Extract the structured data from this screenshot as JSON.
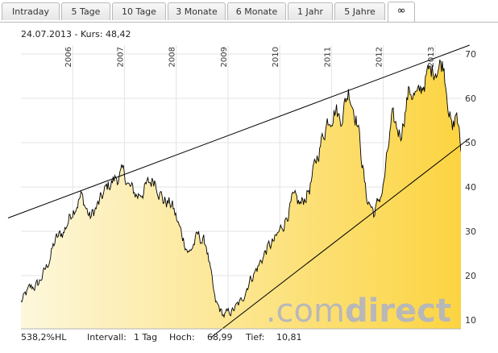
{
  "tabs": [
    {
      "label": "Intraday"
    },
    {
      "label": "5 Tage"
    },
    {
      "label": "10 Tage"
    },
    {
      "label": "3 Monate"
    },
    {
      "label": "6 Monate"
    },
    {
      "label": "1 Jahr"
    },
    {
      "label": "5 Jahre"
    },
    {
      "label": "∞",
      "active": true
    }
  ],
  "info": {
    "date": "24.07.2013",
    "kurs_label": " - Kurs:",
    "kurs_value": "48,42"
  },
  "footer": {
    "performance": "538,2%HL",
    "interval_label": "Intervall:",
    "interval_value": "1 Tag",
    "high_label": "Hoch:",
    "high_value": "68,99",
    "low_label": "Tief:",
    "low_value": "10,81"
  },
  "watermark": {
    "part1": ".com",
    "part2": "direct"
  },
  "colors": {
    "fill_light": "#fdf7dc",
    "fill_dark": "#fcd441",
    "line": "#000000",
    "grid": "#e3e3e3",
    "watermark": "#b8b8b8"
  },
  "chart_data": {
    "type": "area",
    "x_range": [
      "2005-01",
      "2013-07"
    ],
    "ylim": [
      8,
      72
    ],
    "yticks": [
      10,
      20,
      30,
      40,
      50,
      60,
      70
    ],
    "year_labels": [
      "2006",
      "2007",
      "2008",
      "2009",
      "2010",
      "2011",
      "2012",
      "2013"
    ],
    "grid": true,
    "series": [
      {
        "values_x": [
          "2005-01",
          "2005-03",
          "2005-05",
          "2005-07",
          "2005-09",
          "2005-11",
          "2006-01",
          "2006-03",
          "2006-05",
          "2006-07",
          "2006-09",
          "2006-11",
          "2007-01",
          "2007-02",
          "2007-04",
          "2007-06",
          "2007-08",
          "2007-10",
          "2007-12",
          "2008-02",
          "2008-04",
          "2008-06",
          "2008-08",
          "2008-10",
          "2008-12",
          "2009-02",
          "2009-04",
          "2009-06",
          "2009-08",
          "2009-10",
          "2009-12",
          "2010-02",
          "2010-04",
          "2010-06",
          "2010-08",
          "2010-10",
          "2010-12",
          "2011-02",
          "2011-03",
          "2011-05",
          "2011-07",
          "2011-09",
          "2011-11",
          "2012-01",
          "2012-03",
          "2012-05",
          "2012-07",
          "2012-09",
          "2012-11",
          "2013-01",
          "2013-03",
          "2013-05",
          "2013-06",
          "2013-07"
        ],
        "values": [
          14,
          17,
          18,
          22,
          28,
          30,
          35,
          38,
          33,
          36,
          40,
          42,
          43,
          40,
          38,
          40,
          42,
          37,
          36,
          30,
          25,
          29,
          27,
          14,
          11,
          12,
          14,
          19,
          22,
          26,
          28,
          32,
          37,
          36,
          40,
          48,
          55,
          58,
          55,
          62,
          55,
          38,
          34,
          40,
          55,
          52,
          62,
          60,
          65,
          67,
          68,
          52,
          57,
          48
        ]
      }
    ],
    "trendlines": [
      {
        "from": [
          "2004-10",
          33
        ],
        "to": [
          "2013-09",
          72
        ]
      },
      {
        "from": [
          "2008-09",
          6
        ],
        "to": [
          "2013-09",
          51
        ]
      }
    ]
  }
}
